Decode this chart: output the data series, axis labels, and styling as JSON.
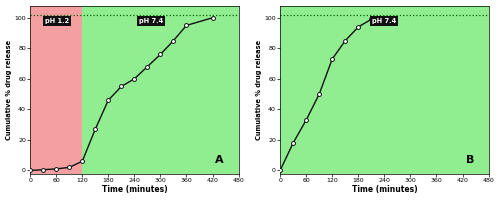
{
  "panel_A": {
    "x": [
      0,
      30,
      60,
      90,
      120,
      150,
      180,
      210,
      240,
      270,
      300,
      330,
      360,
      420
    ],
    "y": [
      0,
      0.5,
      1,
      2,
      6,
      27,
      46,
      55,
      60,
      68,
      76,
      85,
      95,
      100
    ],
    "label": "A",
    "ph12_end": 120,
    "xlim": [
      0,
      480
    ],
    "ylim": [
      -2,
      108
    ],
    "xticks": [
      0,
      60,
      120,
      180,
      240,
      300,
      360,
      420,
      480
    ],
    "yticks": [
      0,
      20,
      40,
      60,
      80,
      100
    ],
    "xlabel": "Time (minutes)",
    "ylabel": "Cumulative % drug release",
    "ph12_label": "pH 1.2",
    "ph74_label": "pH 7.4",
    "dashed_y": 102
  },
  "panel_B": {
    "x": [
      0,
      30,
      60,
      90,
      120,
      150,
      180,
      210,
      240
    ],
    "y": [
      0,
      18,
      33,
      50,
      73,
      85,
      94,
      99,
      100
    ],
    "label": "B",
    "xlim": [
      0,
      480
    ],
    "ylim": [
      -2,
      108
    ],
    "xticks": [
      0,
      60,
      120,
      180,
      240,
      300,
      360,
      420,
      480
    ],
    "yticks": [
      0,
      20,
      40,
      60,
      80,
      100
    ],
    "xlabel": "Time (minutes)",
    "ylabel": "Cumulative % drug release",
    "ph74_label": "pH 7.4",
    "dashed_y": 102
  },
  "bg_pink": "#F4A0A0",
  "bg_green": "#90EE90",
  "line_color": "#111111",
  "marker_facecolor": "#ffffff",
  "marker_edgecolor": "#111111",
  "label_box_color": "#111111",
  "label_text_color": "#ffffff",
  "dashed_color": "#006400",
  "panel_label_color": "#000000"
}
